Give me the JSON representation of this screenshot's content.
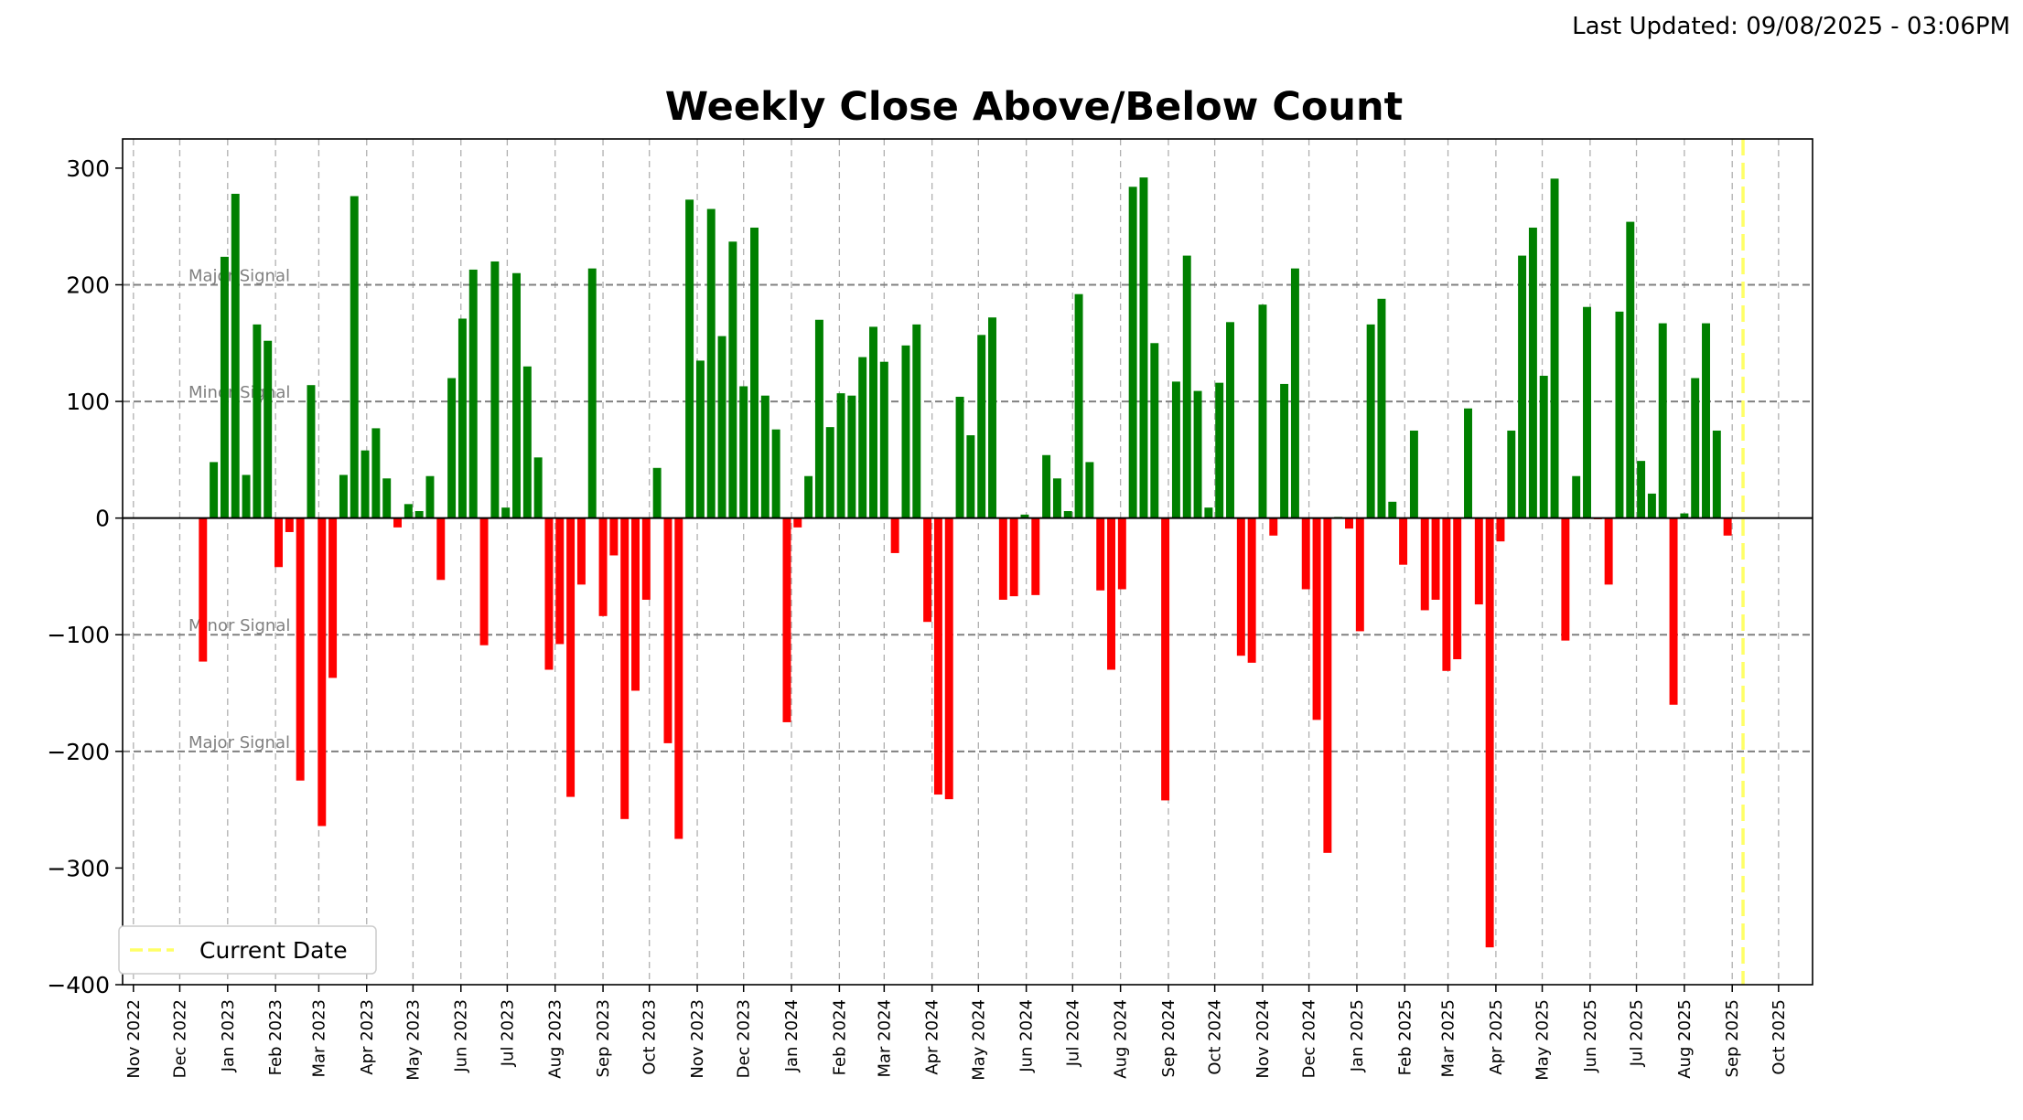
{
  "header": {
    "last_updated": "Last Updated: 09/08/2025 - 03:06PM"
  },
  "chart_data": {
    "type": "bar",
    "title": "Weekly Close Above/Below Count",
    "xlabel": "",
    "ylabel": "",
    "x_axis": "date",
    "xlim": [
      "2022-10-25",
      "2025-10-23"
    ],
    "ylim": [
      -400,
      325
    ],
    "yticks": [
      -400,
      -300,
      -200,
      -100,
      0,
      100,
      200,
      300
    ],
    "ytick_labels": [
      "−400",
      "−300",
      "−200",
      "−100",
      "0",
      "100",
      "200",
      "300"
    ],
    "xticks": [
      "2022-11-01",
      "2022-12-01",
      "2023-01-01",
      "2023-02-01",
      "2023-03-01",
      "2023-04-01",
      "2023-05-01",
      "2023-06-01",
      "2023-07-01",
      "2023-08-01",
      "2023-09-01",
      "2023-10-01",
      "2023-11-01",
      "2023-12-01",
      "2024-01-01",
      "2024-02-01",
      "2024-03-01",
      "2024-04-01",
      "2024-05-01",
      "2024-06-01",
      "2024-07-01",
      "2024-08-01",
      "2024-09-01",
      "2024-10-01",
      "2024-11-01",
      "2024-12-01",
      "2025-01-01",
      "2025-02-01",
      "2025-03-01",
      "2025-04-01",
      "2025-05-01",
      "2025-06-01",
      "2025-07-01",
      "2025-08-01",
      "2025-09-01",
      "2025-10-01"
    ],
    "xtick_labels": [
      "Nov 2022",
      "Dec 2022",
      "Jan 2023",
      "Feb 2023",
      "Mar 2023",
      "Apr 2023",
      "May 2023",
      "Jun 2023",
      "Jul 2023",
      "Aug 2023",
      "Sep 2023",
      "Oct 2023",
      "Nov 2023",
      "Dec 2023",
      "Jan 2024",
      "Feb 2024",
      "Mar 2024",
      "Apr 2024",
      "May 2024",
      "Jun 2024",
      "Jul 2024",
      "Aug 2024",
      "Sep 2024",
      "Oct 2024",
      "Nov 2024",
      "Dec 2024",
      "Jan 2025",
      "Feb 2025",
      "Mar 2025",
      "Apr 2025",
      "May 2025",
      "Jun 2025",
      "Jul 2025",
      "Aug 2025",
      "Sep 2025",
      "Oct 2025"
    ],
    "first_week": "2022-12-16",
    "week_step_days": 7,
    "values": [
      -123,
      48,
      224,
      278,
      37,
      166,
      152,
      -42,
      -12,
      -225,
      114,
      -264,
      -137,
      37,
      276,
      58,
      77,
      34,
      -8,
      12,
      6,
      36,
      -53,
      120,
      171,
      213,
      -109,
      220,
      9,
      210,
      130,
      52,
      -130,
      -108,
      -239,
      -57,
      214,
      -84,
      -32,
      -258,
      -148,
      -70,
      43,
      -193,
      -275,
      273,
      135,
      265,
      156,
      237,
      113,
      249,
      105,
      76,
      -175,
      -8,
      36,
      170,
      78,
      107,
      105,
      138,
      164,
      134,
      -30,
      148,
      166,
      -89,
      -237,
      -241,
      104,
      71,
      157,
      172,
      -70,
      -67,
      3,
      -66,
      54,
      34,
      6,
      192,
      48,
      -62,
      -130,
      -61,
      284,
      292,
      150,
      -242,
      117,
      225,
      109,
      9,
      116,
      168,
      -118,
      -124,
      183,
      -15,
      115,
      214,
      -61,
      -173,
      -287,
      1,
      -9,
      -97,
      166,
      188,
      14,
      -40,
      75,
      -79,
      -70,
      -131,
      -121,
      94,
      -74,
      -368,
      -20,
      75,
      225,
      249,
      122,
      291,
      -105,
      36,
      181,
      -1,
      -57,
      177,
      254,
      49,
      21,
      167,
      -160,
      4,
      120,
      167,
      75,
      -15
    ],
    "positive_color": "#008000",
    "negative_color": "#ff0000",
    "grid": true,
    "reference_lines": [
      {
        "y": 200,
        "label": "Major Signal"
      },
      {
        "y": 100,
        "label": "Minor Signal"
      },
      {
        "y": -100,
        "label": "Minor Signal"
      },
      {
        "y": -200,
        "label": "Major Signal"
      }
    ],
    "current_date": {
      "x": "2025-09-08",
      "label": "Current Date",
      "color": "#ffff66"
    },
    "legend": {
      "placement": "bottom-left",
      "entries": [
        "Current Date"
      ]
    }
  }
}
